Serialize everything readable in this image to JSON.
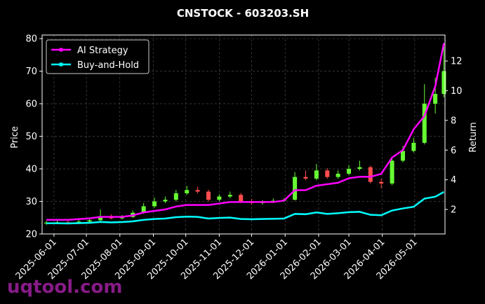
{
  "chart_data": {
    "type": "candlestick",
    "title": "CNSTOCK - 603203.SH",
    "ylabel": "Price",
    "y2label": "Return",
    "watermark": "uqtool.com",
    "x": [
      "2025-05-25",
      "2025-06-04",
      "2025-06-14",
      "2025-06-24",
      "2025-07-04",
      "2025-07-14",
      "2025-07-24",
      "2025-08-03",
      "2025-08-13",
      "2025-08-23",
      "2025-09-02",
      "2025-09-12",
      "2025-09-22",
      "2025-10-02",
      "2025-10-12",
      "2025-10-22",
      "2025-11-01",
      "2025-11-11",
      "2025-11-21",
      "2025-12-01",
      "2025-12-11",
      "2025-12-21",
      "2025-12-31",
      "2026-01-10",
      "2026-01-20",
      "2026-01-30",
      "2026-02-09",
      "2026-02-19",
      "2026-03-01",
      "2026-03-11",
      "2026-03-21",
      "2026-03-31",
      "2026-04-10",
      "2026-04-20",
      "2026-04-30",
      "2026-05-10",
      "2026-05-20",
      "2026-05-28"
    ],
    "open": [
      23.2,
      23.5,
      23.6,
      23.3,
      23.8,
      24.2,
      25.5,
      24.8,
      25.2,
      26.5,
      28.5,
      30.0,
      30.5,
      32.5,
      33.5,
      33.0,
      30.5,
      31.5,
      32.0,
      30.0,
      29.5,
      30.0,
      30.2,
      30.5,
      37.5,
      37.0,
      39.5,
      37.5,
      38.5,
      40.0,
      40.5,
      36.0,
      35.5,
      42.5,
      45.5,
      48.0,
      60.0,
      63.0
    ],
    "high": [
      24.0,
      24.2,
      24.1,
      24.3,
      24.9,
      27.5,
      26.0,
      25.8,
      27.2,
      29.5,
      31.2,
      31.5,
      33.5,
      34.8,
      34.5,
      33.6,
      32.2,
      33.0,
      32.6,
      30.8,
      30.4,
      30.9,
      31.0,
      39.0,
      39.5,
      41.5,
      40.2,
      39.5,
      41.2,
      42.5,
      41.0,
      37.0,
      43.5,
      47.0,
      49.5,
      66.0,
      68.0,
      78.5
    ],
    "low": [
      22.8,
      23.0,
      23.0,
      23.0,
      23.5,
      24.0,
      24.5,
      24.5,
      25.0,
      26.2,
      28.0,
      29.5,
      30.0,
      32.0,
      32.5,
      30.0,
      30.0,
      31.0,
      29.5,
      29.0,
      29.0,
      29.6,
      29.8,
      30.3,
      36.5,
      36.5,
      37.0,
      37.0,
      38.0,
      39.5,
      35.5,
      34.0,
      35.0,
      42.0,
      45.0,
      47.5,
      57.0,
      62.0
    ],
    "close": [
      23.5,
      23.6,
      23.3,
      23.8,
      24.2,
      25.5,
      24.8,
      25.2,
      26.5,
      28.5,
      30.0,
      30.5,
      32.5,
      33.5,
      33.0,
      30.5,
      31.5,
      32.0,
      30.0,
      29.5,
      30.0,
      30.2,
      30.5,
      37.5,
      37.0,
      39.5,
      37.5,
      38.5,
      40.0,
      40.5,
      36.0,
      35.5,
      42.5,
      45.5,
      48.0,
      60.0,
      63.0,
      70.0
    ],
    "up_color": "#66ff33",
    "down_color": "#ff4d4d",
    "series": [
      {
        "name": "AI Strategy",
        "color": "#ff00ff",
        "axis": "y2",
        "values": [
          1.3,
          1.3,
          1.3,
          1.35,
          1.4,
          1.5,
          1.5,
          1.5,
          1.6,
          1.8,
          1.9,
          2.0,
          2.2,
          2.3,
          2.3,
          2.3,
          2.4,
          2.5,
          2.5,
          2.5,
          2.5,
          2.5,
          2.6,
          3.3,
          3.3,
          3.6,
          3.7,
          3.8,
          4.1,
          4.2,
          4.2,
          4.4,
          5.5,
          6.0,
          7.4,
          8.3,
          10.3,
          13.2
        ]
      },
      {
        "name": "Buy-and-Hold",
        "color": "#00ffff",
        "axis": "y2",
        "values": [
          1.07,
          1.07,
          1.06,
          1.08,
          1.1,
          1.16,
          1.13,
          1.15,
          1.2,
          1.3,
          1.36,
          1.39,
          1.48,
          1.52,
          1.5,
          1.39,
          1.43,
          1.45,
          1.36,
          1.34,
          1.36,
          1.37,
          1.39,
          1.7,
          1.68,
          1.8,
          1.7,
          1.75,
          1.82,
          1.84,
          1.64,
          1.61,
          1.93,
          2.07,
          2.18,
          2.73,
          2.86,
          3.18
        ]
      }
    ],
    "xlim": [
      "2025-05-21",
      "2026-05-29"
    ],
    "xticks": [
      "2025-06-01",
      "2025-07-01",
      "2025-08-01",
      "2025-09-01",
      "2025-10-01",
      "2025-11-01",
      "2025-12-01",
      "2026-01-01",
      "2026-02-01",
      "2026-03-01",
      "2026-04-01",
      "2026-05-01"
    ],
    "ylim": [
      20,
      81.1
    ],
    "yticks": [
      20,
      30,
      40,
      50,
      60,
      70,
      80
    ],
    "y2lim": [
      0.35,
      13.75
    ],
    "y2ticks": [
      2,
      4,
      6,
      8,
      10,
      12
    ],
    "grid": true,
    "legend": "upper left"
  }
}
